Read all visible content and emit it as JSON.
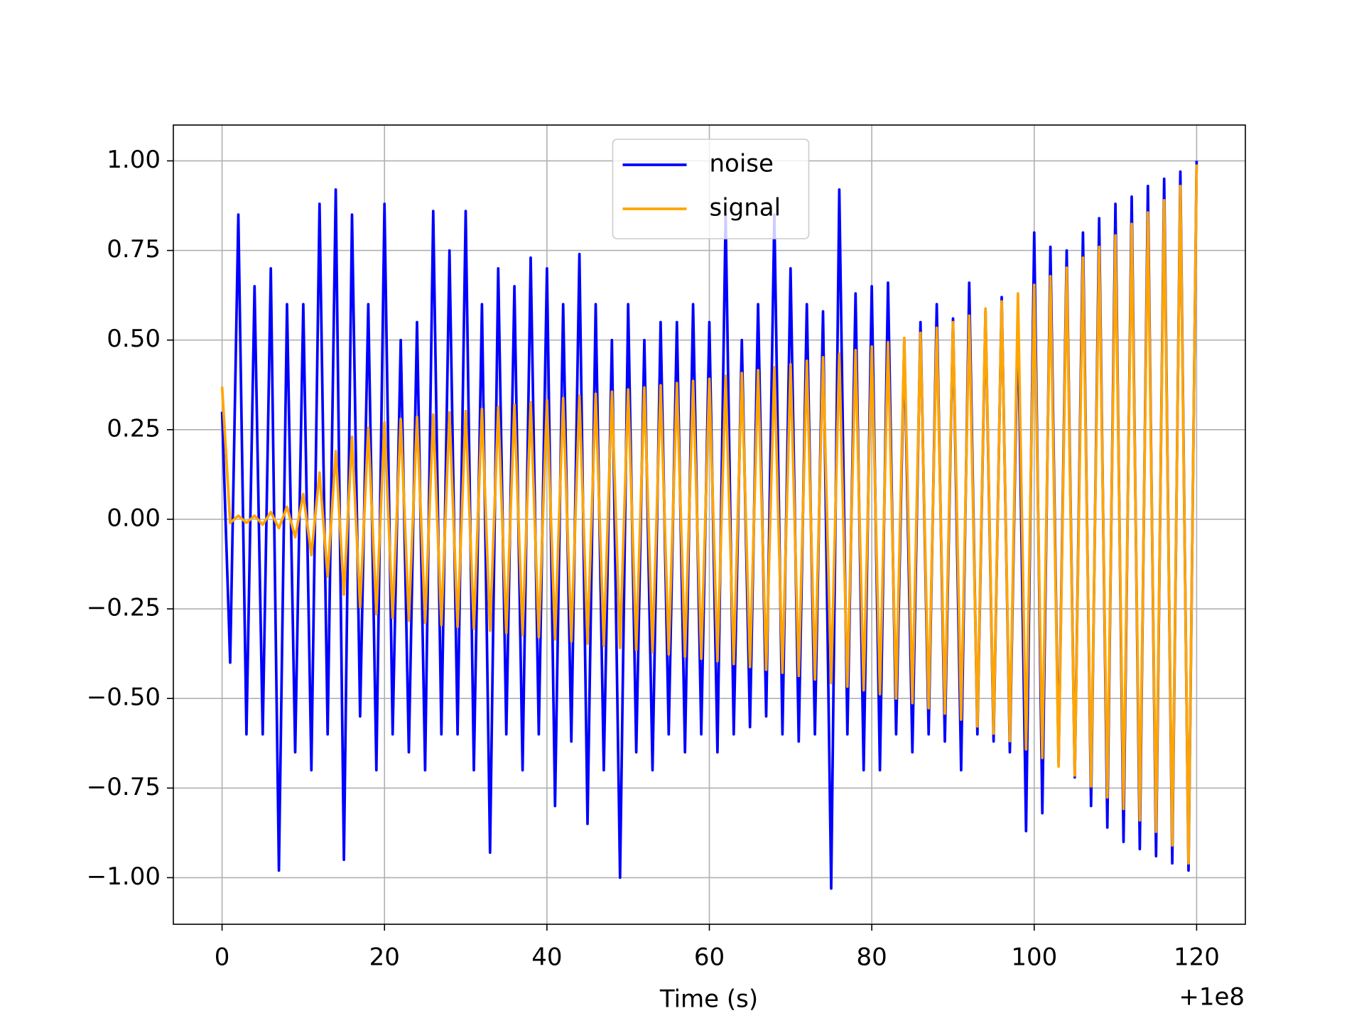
{
  "chart_data": {
    "type": "line",
    "x_label": "Time (s)",
    "x_offset_label": "+1e8",
    "x": [
      0,
      1,
      2,
      3,
      4,
      5,
      6,
      7,
      8,
      9,
      10,
      11,
      12,
      13,
      14,
      15,
      16,
      17,
      18,
      19,
      20,
      21,
      22,
      23,
      24,
      25,
      26,
      27,
      28,
      29,
      30,
      31,
      32,
      33,
      34,
      35,
      36,
      37,
      38,
      39,
      40,
      41,
      42,
      43,
      44,
      45,
      46,
      47,
      48,
      49,
      50,
      51,
      52,
      53,
      54,
      55,
      56,
      57,
      58,
      59,
      60,
      61,
      62,
      63,
      64,
      65,
      66,
      67,
      68,
      69,
      70,
      71,
      72,
      73,
      74,
      75,
      76,
      77,
      78,
      79,
      80,
      81,
      82,
      83,
      84,
      85,
      86,
      87,
      88,
      89,
      90,
      91,
      92,
      93,
      94,
      95,
      96,
      97,
      98,
      99,
      100,
      101,
      102,
      103,
      104,
      105,
      106,
      107,
      108,
      109,
      110,
      111,
      112,
      113,
      114,
      115,
      116,
      117,
      118,
      119,
      120
    ],
    "series": [
      {
        "name": "noise",
        "color": "#0000ff",
        "values": [
          0.3,
          -0.4,
          0.85,
          -0.6,
          0.65,
          -0.6,
          0.7,
          -0.98,
          0.6,
          -0.65,
          0.6,
          -0.7,
          0.88,
          -0.6,
          0.92,
          -0.95,
          0.85,
          -0.55,
          0.6,
          -0.7,
          0.88,
          -0.6,
          0.5,
          -0.65,
          0.55,
          -0.7,
          0.86,
          -0.6,
          0.75,
          -0.6,
          0.86,
          -0.7,
          0.6,
          -0.93,
          0.7,
          -0.6,
          0.65,
          -0.7,
          0.73,
          -0.6,
          0.7,
          -0.8,
          0.6,
          -0.62,
          0.74,
          -0.85,
          0.6,
          -0.7,
          0.5,
          -1.0,
          0.6,
          -0.65,
          0.5,
          -0.7,
          0.55,
          -0.6,
          0.55,
          -0.65,
          0.6,
          -0.6,
          0.55,
          -0.65,
          0.85,
          -0.6,
          0.5,
          -0.58,
          0.6,
          -0.55,
          0.85,
          -0.6,
          0.7,
          -0.62,
          0.6,
          -0.6,
          0.58,
          -1.03,
          0.92,
          -0.6,
          0.63,
          -0.7,
          0.65,
          -0.7,
          0.66,
          -0.6,
          0.5,
          -0.65,
          0.55,
          -0.6,
          0.6,
          -0.62,
          0.56,
          -0.7,
          0.66,
          -0.6,
          0.58,
          -0.62,
          0.62,
          -0.65,
          0.58,
          -0.87,
          0.8,
          -0.82,
          0.76,
          -0.68,
          0.75,
          -0.72,
          0.8,
          -0.8,
          0.84,
          -0.86,
          0.88,
          -0.9,
          0.9,
          -0.92,
          0.93,
          -0.94,
          0.95,
          -0.96,
          0.97,
          -0.98,
          1.0
        ]
      },
      {
        "name": "signal",
        "color": "#ffa500",
        "values": [
          0.37,
          -0.01,
          0.01,
          -0.01,
          0.01,
          -0.015,
          0.02,
          -0.025,
          0.035,
          -0.05,
          0.07,
          -0.1,
          0.13,
          -0.16,
          0.19,
          -0.21,
          0.23,
          -0.245,
          0.255,
          -0.265,
          0.27,
          -0.275,
          0.28,
          -0.283,
          0.286,
          -0.289,
          0.292,
          -0.295,
          0.298,
          -0.3,
          0.302,
          -0.305,
          0.308,
          -0.311,
          0.314,
          -0.317,
          0.32,
          -0.323,
          0.326,
          -0.329,
          0.332,
          -0.335,
          0.338,
          -0.341,
          0.344,
          -0.347,
          0.35,
          -0.353,
          0.356,
          -0.359,
          0.362,
          -0.365,
          0.368,
          -0.371,
          0.374,
          -0.377,
          0.38,
          -0.383,
          0.386,
          -0.389,
          0.392,
          -0.396,
          0.4,
          -0.404,
          0.408,
          -0.412,
          0.416,
          -0.42,
          0.424,
          -0.428,
          0.432,
          -0.437,
          0.442,
          -0.447,
          0.452,
          -0.457,
          0.462,
          -0.467,
          0.472,
          -0.477,
          0.482,
          -0.488,
          0.494,
          -0.5,
          0.506,
          -0.513,
          0.52,
          -0.527,
          0.534,
          -0.542,
          0.55,
          -0.559,
          0.568,
          -0.578,
          0.588,
          -0.598,
          0.608,
          -0.619,
          0.63,
          -0.642,
          0.654,
          -0.666,
          0.678,
          -0.69,
          0.702,
          -0.715,
          0.73,
          -0.745,
          0.76,
          -0.776,
          0.792,
          -0.808,
          0.824,
          -0.84,
          0.856,
          -0.872,
          0.89,
          -0.91,
          0.93,
          -0.96,
          0.99
        ]
      }
    ],
    "xlim": [
      -6,
      126
    ],
    "ylim": [
      -1.13,
      1.1
    ],
    "xticks": [
      0,
      20,
      40,
      60,
      80,
      100,
      120
    ],
    "yticks": [
      {
        "value": -1,
        "label": "−1.00"
      },
      {
        "value": -0.75,
        "label": "−0.75"
      },
      {
        "value": -0.5,
        "label": "−0.50"
      },
      {
        "value": -0.25,
        "label": "−0.25"
      },
      {
        "value": 0,
        "label": "0.00"
      },
      {
        "value": 0.25,
        "label": "0.25"
      },
      {
        "value": 0.5,
        "label": "0.50"
      },
      {
        "value": 0.75,
        "label": "0.75"
      },
      {
        "value": 1,
        "label": "1.00"
      }
    ],
    "grid": true,
    "legend": "upper center"
  }
}
